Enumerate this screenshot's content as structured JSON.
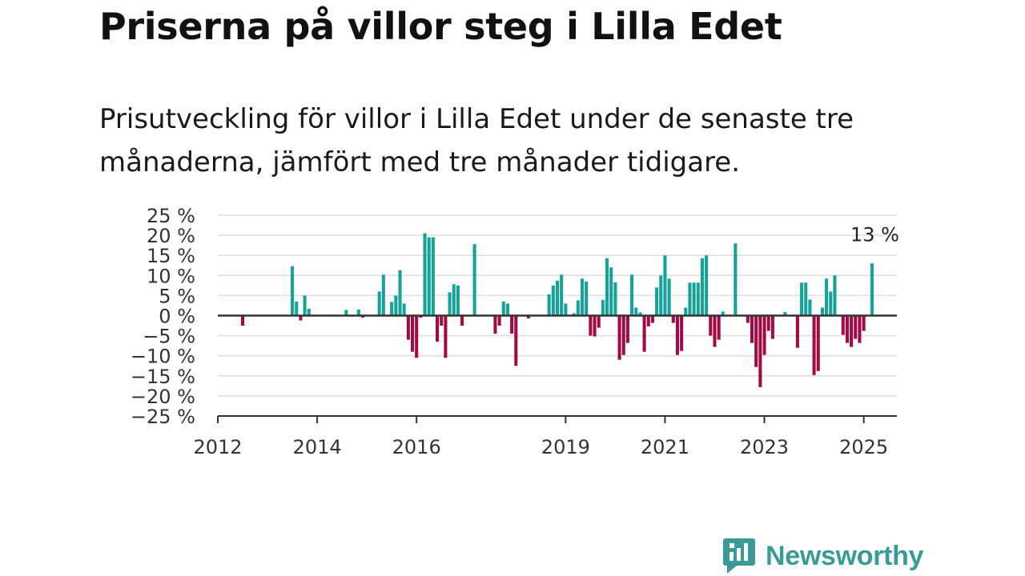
{
  "header": {
    "title": "Priserna på villor steg i Lilla Edet",
    "subtitle": "Prisutveckling för villor i Lilla Edet under de senaste tre månaderna, jämfört med tre månader tidigare."
  },
  "brand": {
    "name": "Newsworthy",
    "icon": "newsworthy-logo-icon",
    "color": "#3a9b96"
  },
  "chart_data": {
    "type": "bar",
    "title": "Priserna på villor steg i Lilla Edet",
    "subtitle": "Prisutveckling för villor i Lilla Edet under de senaste tre månaderna, jämfört med tre månader tidigare.",
    "xlabel": "",
    "ylabel": "",
    "ylim": [
      -25,
      25
    ],
    "xlim": [
      "2012-01",
      "2025-09"
    ],
    "yticks": [
      25,
      20,
      15,
      10,
      5,
      0,
      -5,
      -10,
      -15,
      -20,
      -25
    ],
    "ytick_labels": [
      "25 %",
      "20 %",
      "15 %",
      "10 %",
      "5 %",
      "0 %",
      "−5 %",
      "−10 %",
      "−15 %",
      "−20 %",
      "−25 %"
    ],
    "xtick_labels": [
      "2012",
      "2014",
      "2016",
      "2019",
      "2021",
      "2023",
      "2025"
    ],
    "grid": true,
    "colors": {
      "positive": "#16a299",
      "negative": "#a10b45",
      "grid": "#dddddd",
      "axis": "#333333"
    },
    "annotation": {
      "text": "13 %",
      "date": "2025-03"
    },
    "series": [
      {
        "values": [
          {
            "date": "2012-07",
            "value": -2.5
          },
          {
            "date": "2013-07",
            "value": 12.3
          },
          {
            "date": "2013-08",
            "value": 3.5
          },
          {
            "date": "2013-09",
            "value": -1.2
          },
          {
            "date": "2013-10",
            "value": 5
          },
          {
            "date": "2013-11",
            "value": 1.7
          },
          {
            "date": "2014-08",
            "value": 1.4
          },
          {
            "date": "2014-11",
            "value": 1.5
          },
          {
            "date": "2014-12",
            "value": -0.5
          },
          {
            "date": "2015-04",
            "value": 6
          },
          {
            "date": "2015-05",
            "value": 10.2
          },
          {
            "date": "2015-07",
            "value": 3.4
          },
          {
            "date": "2015-08",
            "value": 5
          },
          {
            "date": "2015-09",
            "value": 11.3
          },
          {
            "date": "2015-10",
            "value": 3
          },
          {
            "date": "2015-11",
            "value": -6
          },
          {
            "date": "2015-12",
            "value": -9
          },
          {
            "date": "2016-01",
            "value": -10.5
          },
          {
            "date": "2016-02",
            "value": -0.5
          },
          {
            "date": "2016-03",
            "value": 20.5
          },
          {
            "date": "2016-04",
            "value": 19.5
          },
          {
            "date": "2016-05",
            "value": 19.5
          },
          {
            "date": "2016-06",
            "value": -6.5
          },
          {
            "date": "2016-07",
            "value": -2.5
          },
          {
            "date": "2016-08",
            "value": -10.5
          },
          {
            "date": "2016-09",
            "value": 5.8
          },
          {
            "date": "2016-10",
            "value": 7.8
          },
          {
            "date": "2016-11",
            "value": 7.5
          },
          {
            "date": "2016-12",
            "value": -2.5
          },
          {
            "date": "2017-03",
            "value": 17.8
          },
          {
            "date": "2017-08",
            "value": -4.5
          },
          {
            "date": "2017-09",
            "value": -2.5
          },
          {
            "date": "2017-10",
            "value": 3.5
          },
          {
            "date": "2017-11",
            "value": 3
          },
          {
            "date": "2017-12",
            "value": -4.5
          },
          {
            "date": "2018-01",
            "value": -12.5
          },
          {
            "date": "2018-04",
            "value": -0.7
          },
          {
            "date": "2018-09",
            "value": 5.3
          },
          {
            "date": "2018-10",
            "value": 7.5
          },
          {
            "date": "2018-11",
            "value": 8.7
          },
          {
            "date": "2018-12",
            "value": 10.2
          },
          {
            "date": "2019-01",
            "value": 3
          },
          {
            "date": "2019-03",
            "value": 0.6
          },
          {
            "date": "2019-04",
            "value": 3.8
          },
          {
            "date": "2019-05",
            "value": 9.2
          },
          {
            "date": "2019-06",
            "value": 8.5
          },
          {
            "date": "2019-07",
            "value": -5
          },
          {
            "date": "2019-08",
            "value": -5.2
          },
          {
            "date": "2019-09",
            "value": -3
          },
          {
            "date": "2019-10",
            "value": 3.9
          },
          {
            "date": "2019-11",
            "value": 14.3
          },
          {
            "date": "2019-12",
            "value": 12
          },
          {
            "date": "2020-01",
            "value": 8.3
          },
          {
            "date": "2020-02",
            "value": -11
          },
          {
            "date": "2020-03",
            "value": -9.8
          },
          {
            "date": "2020-04",
            "value": -6.8
          },
          {
            "date": "2020-05",
            "value": 10.2
          },
          {
            "date": "2020-06",
            "value": 2
          },
          {
            "date": "2020-07",
            "value": 0.8
          },
          {
            "date": "2020-08",
            "value": -9
          },
          {
            "date": "2020-09",
            "value": -2.7
          },
          {
            "date": "2020-10",
            "value": -1.8
          },
          {
            "date": "2020-11",
            "value": 7
          },
          {
            "date": "2020-12",
            "value": 10
          },
          {
            "date": "2021-01",
            "value": 15
          },
          {
            "date": "2021-02",
            "value": 9.2
          },
          {
            "date": "2021-03",
            "value": -1.8
          },
          {
            "date": "2021-04",
            "value": -9.8
          },
          {
            "date": "2021-05",
            "value": -8.8
          },
          {
            "date": "2021-06",
            "value": 2
          },
          {
            "date": "2021-07",
            "value": 8.2
          },
          {
            "date": "2021-08",
            "value": 8.2
          },
          {
            "date": "2021-09",
            "value": 8.2
          },
          {
            "date": "2021-10",
            "value": 14.3
          },
          {
            "date": "2021-11",
            "value": 15
          },
          {
            "date": "2021-12",
            "value": -5
          },
          {
            "date": "2022-01",
            "value": -7.8
          },
          {
            "date": "2022-02",
            "value": -6
          },
          {
            "date": "2022-03",
            "value": 1
          },
          {
            "date": "2022-06",
            "value": 18
          },
          {
            "date": "2022-09",
            "value": -1.8
          },
          {
            "date": "2022-10",
            "value": -6.8
          },
          {
            "date": "2022-11",
            "value": -12.8
          },
          {
            "date": "2022-12",
            "value": -17.8
          },
          {
            "date": "2023-01",
            "value": -9.8
          },
          {
            "date": "2023-02",
            "value": -3.8
          },
          {
            "date": "2023-03",
            "value": -5.8
          },
          {
            "date": "2023-06",
            "value": 0.9
          },
          {
            "date": "2023-09",
            "value": -8
          },
          {
            "date": "2023-10",
            "value": 8.2
          },
          {
            "date": "2023-11",
            "value": 8.2
          },
          {
            "date": "2023-12",
            "value": 4
          },
          {
            "date": "2024-01",
            "value": -14.8
          },
          {
            "date": "2024-02",
            "value": -13.8
          },
          {
            "date": "2024-03",
            "value": 2
          },
          {
            "date": "2024-04",
            "value": 9.2
          },
          {
            "date": "2024-05",
            "value": 6
          },
          {
            "date": "2024-06",
            "value": 10
          },
          {
            "date": "2024-08",
            "value": -4.8
          },
          {
            "date": "2024-09",
            "value": -6.8
          },
          {
            "date": "2024-10",
            "value": -7.8
          },
          {
            "date": "2024-11",
            "value": -5.8
          },
          {
            "date": "2024-12",
            "value": -6.8
          },
          {
            "date": "2025-01",
            "value": -3.8
          },
          {
            "date": "2025-03",
            "value": 13
          }
        ]
      }
    ]
  }
}
